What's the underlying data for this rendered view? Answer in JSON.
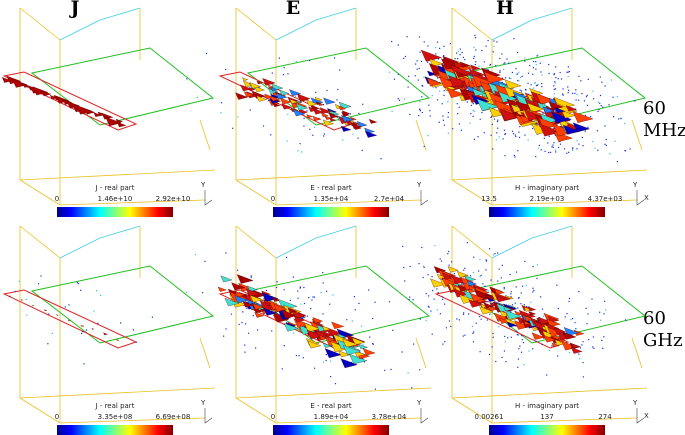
{
  "header": {
    "columns": [
      "J",
      "E",
      "H"
    ]
  },
  "rows": [
    {
      "label_top": "60",
      "label_bottom": "MHz"
    },
    {
      "label_top": "60",
      "label_bottom": "GHz"
    }
  ],
  "panels": [
    [
      {
        "title": "J - real part",
        "ticks": [
          "0",
          "1.46e+10",
          "2.92e+10"
        ],
        "axis_y": "Y"
      },
      {
        "title": "E - real part",
        "ticks": [
          "0",
          "1.35e+04",
          "2.7e+04"
        ],
        "axis_y": "Y"
      },
      {
        "title": "H - imaginary part",
        "ticks": [
          "13.5",
          "2.19e+03",
          "4.37e+03"
        ],
        "axis_y": "Y",
        "axis_x": "X"
      }
    ],
    [
      {
        "title": "J - real part",
        "ticks": [
          "0",
          "3.35e+08",
          "6.69e+08"
        ],
        "axis_y": "Y"
      },
      {
        "title": "E - real part",
        "ticks": [
          "0",
          "1.89e+04",
          "3.78e+04"
        ],
        "axis_y": "Y"
      },
      {
        "title": "H - imaginary part",
        "ticks": [
          "0.00261",
          "137",
          "274"
        ],
        "axis_y": "Y",
        "axis_x": "X"
      }
    ]
  ]
}
